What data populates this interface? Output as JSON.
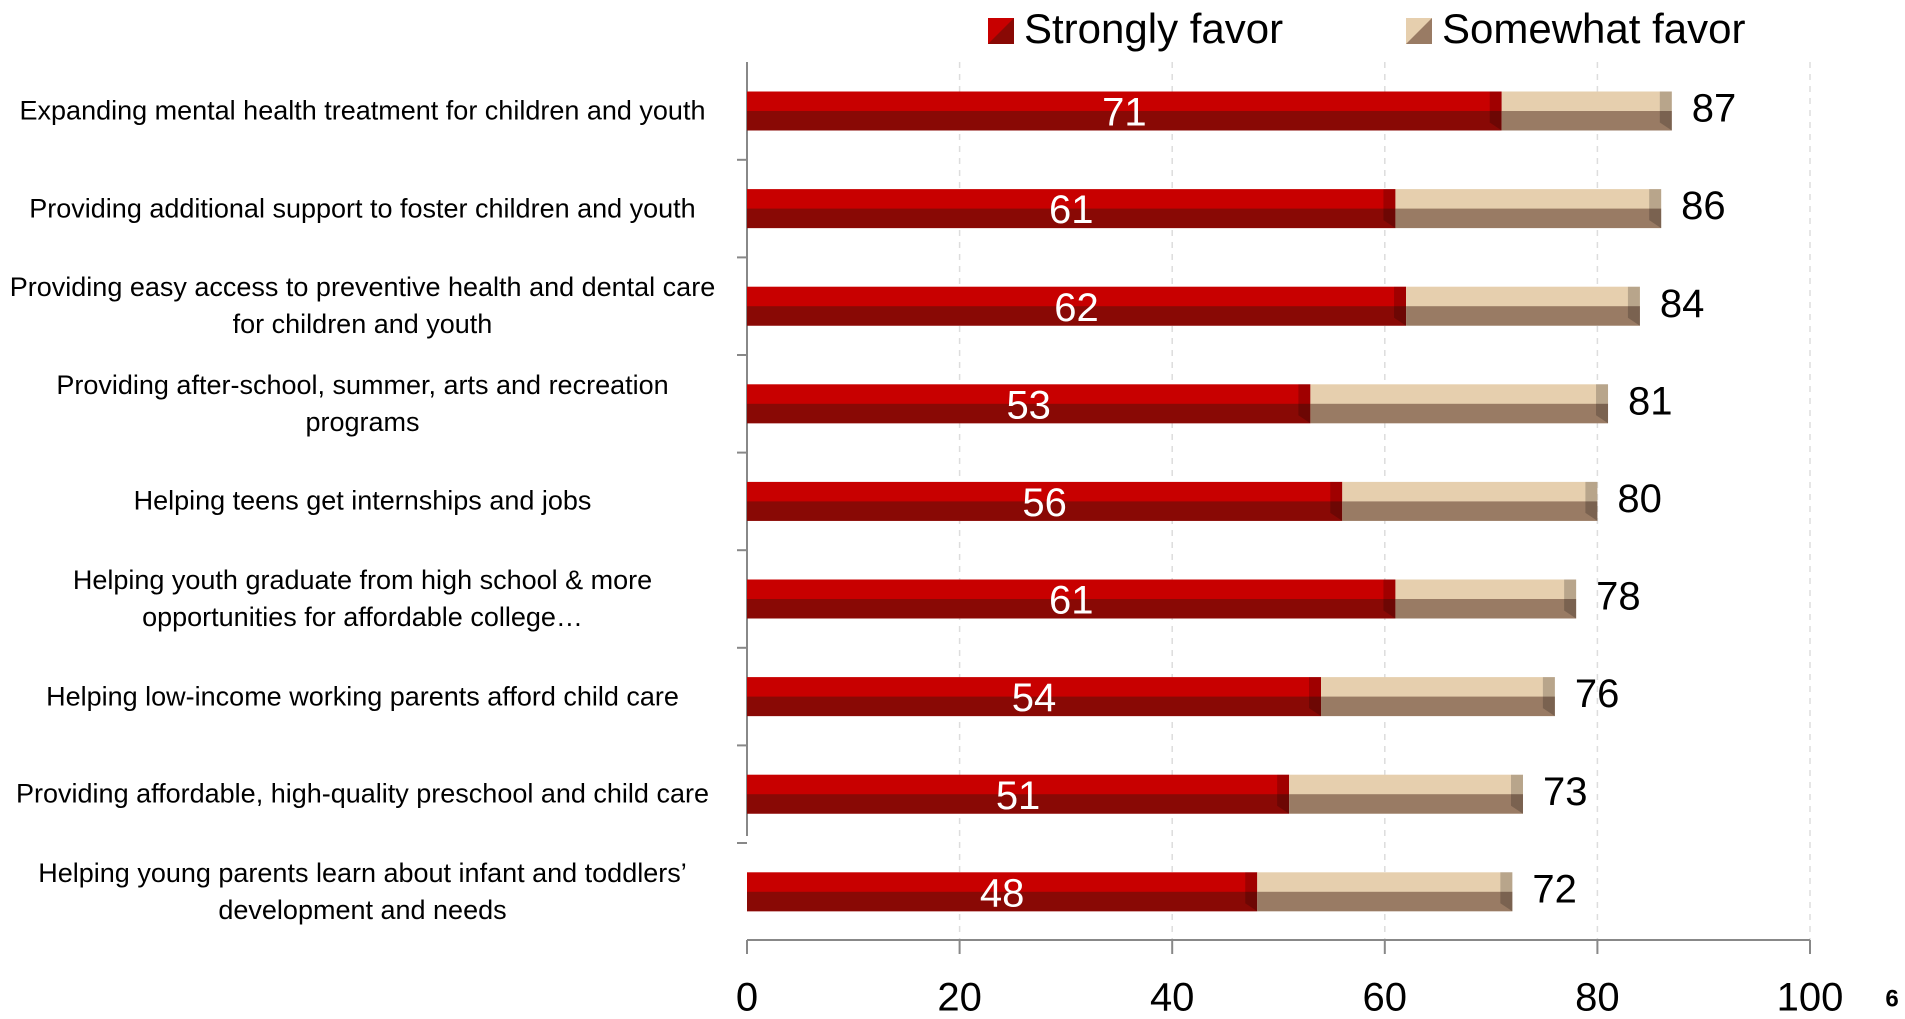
{
  "chart_data": {
    "type": "stacked-bar-horizontal",
    "categories": [
      "Expanding mental health treatment for children and youth",
      "Providing additional support to foster children and youth",
      "Providing easy access to preventive health and dental care for children and youth",
      "Providing after-school, summer, arts and recreation programs",
      "Helping teens get internships and jobs",
      "Helping youth graduate from high school & more opportunities for affordable college…",
      "Helping low-income working parents afford child care",
      "Providing affordable, high-quality preschool and child care",
      "Helping young parents learn about infant and toddlers’ development and needs"
    ],
    "series": [
      {
        "name": "Strongly favor",
        "color": "#c80000",
        "values": [
          71,
          61,
          62,
          53,
          56,
          61,
          54,
          51,
          48
        ]
      },
      {
        "name": "Somewhat favor",
        "color": "#e6cfae",
        "values": [
          16,
          25,
          22,
          28,
          24,
          17,
          22,
          22,
          24
        ]
      }
    ],
    "totals": [
      87,
      86,
      84,
      81,
      80,
      78,
      76,
      73,
      72
    ],
    "xlim": [
      0,
      100
    ],
    "xticks": [
      0,
      20,
      40,
      60,
      80,
      100
    ],
    "grid": true,
    "legend": "top-right",
    "page_number": "6"
  }
}
